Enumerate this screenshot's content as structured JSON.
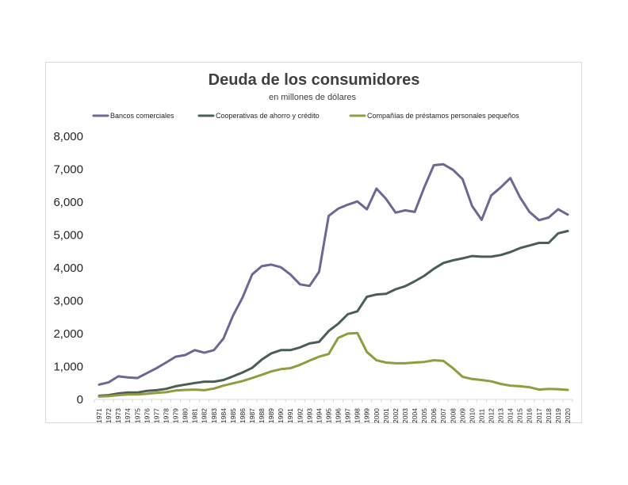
{
  "chart_data": {
    "type": "line",
    "title": "Deuda de los consumidores",
    "subtitle": "en millones  de dólares",
    "xlabel": "",
    "ylabel": "",
    "ylim": [
      0,
      8000
    ],
    "yticks": [
      0,
      1000,
      2000,
      3000,
      4000,
      5000,
      6000,
      7000,
      8000
    ],
    "ytick_labels": [
      "0",
      "1,000",
      "2,000",
      "3,000",
      "4,000",
      "5,000",
      "6,000",
      "7,000",
      "8,000"
    ],
    "legend_position": "top",
    "grid": false,
    "x": [
      "1971",
      "1972",
      "1973",
      "1974",
      "1975",
      "1976",
      "1977",
      "1978",
      "1979",
      "1980",
      "1981",
      "1982",
      "1983",
      "1984",
      "1985",
      "1986",
      "1987",
      "1988",
      "1989",
      "1990",
      "1991",
      "1992",
      "1993",
      "1994",
      "1995",
      "1996",
      "1997",
      "1998",
      "1999",
      "2000",
      "2001",
      "2002",
      "2003",
      "2004",
      "2005",
      "2006",
      "2007",
      "2008",
      "2009",
      "2010",
      "2011",
      "2012",
      "2013",
      "2014",
      "2015",
      "2016",
      "2017",
      "2018",
      "2019",
      "2020"
    ],
    "series": [
      {
        "name": "Bancos comerciales",
        "color": "#6e6796",
        "values": [
          450,
          520,
          700,
          670,
          650,
          800,
          950,
          1120,
          1300,
          1350,
          1500,
          1420,
          1500,
          1850,
          2550,
          3100,
          3800,
          4050,
          4100,
          4020,
          3800,
          3500,
          3450,
          3880,
          5580,
          5800,
          5920,
          6020,
          5780,
          6410,
          6100,
          5680,
          5750,
          5700,
          6450,
          7120,
          7150,
          6980,
          6700,
          5880,
          5460,
          6200,
          6450,
          6730,
          6150,
          5700,
          5450,
          5530,
          5780,
          5620
        ]
      },
      {
        "name": "Cooperativas de ahorro y crédito",
        "color": "#4a5e56",
        "values": [
          110,
          130,
          180,
          210,
          210,
          260,
          280,
          320,
          400,
          450,
          500,
          540,
          540,
          590,
          700,
          820,
          960,
          1210,
          1400,
          1500,
          1500,
          1580,
          1700,
          1750,
          2080,
          2300,
          2590,
          2680,
          3120,
          3190,
          3210,
          3350,
          3440,
          3590,
          3760,
          3970,
          4150,
          4230,
          4290,
          4360,
          4340,
          4340,
          4390,
          4480,
          4600,
          4680,
          4760,
          4760,
          5050,
          5120
        ]
      },
      {
        "name": "Compañías de préstamos personales pequeños",
        "color": "#939b41",
        "values": [
          90,
          100,
          130,
          150,
          150,
          170,
          200,
          220,
          270,
          290,
          300,
          280,
          330,
          420,
          490,
          560,
          650,
          750,
          850,
          920,
          950,
          1050,
          1180,
          1300,
          1380,
          1870,
          2000,
          2020,
          1440,
          1190,
          1120,
          1100,
          1100,
          1120,
          1140,
          1190,
          1170,
          950,
          690,
          620,
          590,
          550,
          470,
          420,
          400,
          370,
          300,
          320,
          310,
          290
        ]
      }
    ]
  }
}
